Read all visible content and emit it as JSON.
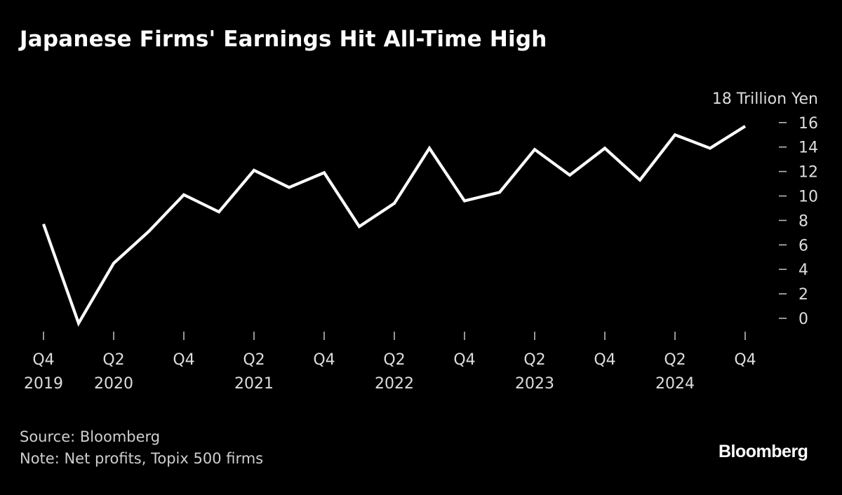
{
  "chart_data": {
    "type": "line",
    "title": "Japanese Firms' Earnings Hit All-Time High",
    "unit_label": "18 Trillion Yen",
    "xlabel": "",
    "ylabel": "",
    "ylim": [
      0,
      18
    ],
    "yticks": [
      0,
      2,
      4,
      6,
      8,
      10,
      12,
      14,
      16
    ],
    "x": [
      "Q4 2019",
      "Q1 2020",
      "Q2 2020",
      "Q3 2020",
      "Q4 2020",
      "Q1 2021",
      "Q2 2021",
      "Q3 2021",
      "Q4 2021",
      "Q1 2022",
      "Q2 2022",
      "Q3 2022",
      "Q4 2022",
      "Q1 2023",
      "Q2 2023",
      "Q3 2023",
      "Q4 2023",
      "Q1 2024",
      "Q2 2024",
      "Q3 2024",
      "Q4 2024"
    ],
    "values": [
      7.7,
      -0.4,
      4.5,
      7.1,
      10.1,
      8.7,
      12.1,
      10.7,
      11.9,
      7.5,
      9.4,
      13.9,
      9.6,
      10.3,
      13.8,
      11.7,
      13.9,
      11.3,
      15.0,
      13.9,
      15.7
    ],
    "xtick_labels": [
      {
        "index": 0,
        "quarter": "Q4",
        "year": "2019"
      },
      {
        "index": 2,
        "quarter": "Q2",
        "year": "2020"
      },
      {
        "index": 4,
        "quarter": "Q4",
        "year": ""
      },
      {
        "index": 6,
        "quarter": "Q2",
        "year": "2021"
      },
      {
        "index": 8,
        "quarter": "Q4",
        "year": ""
      },
      {
        "index": 10,
        "quarter": "Q2",
        "year": "2022"
      },
      {
        "index": 12,
        "quarter": "Q4",
        "year": ""
      },
      {
        "index": 14,
        "quarter": "Q2",
        "year": "2023"
      },
      {
        "index": 16,
        "quarter": "Q4",
        "year": ""
      },
      {
        "index": 18,
        "quarter": "Q2",
        "year": "2024"
      },
      {
        "index": 20,
        "quarter": "Q4",
        "year": ""
      }
    ],
    "line_color": "#ffffff",
    "background": "#000000",
    "axis_color": "#bbbbbb",
    "text_color": "#dddddd",
    "grid": false,
    "y_axis_side": "right"
  },
  "footer": {
    "source": "Source: Bloomberg",
    "note": "Note: Net profits, Topix 500 firms"
  },
  "brand": {
    "logo_text": "Bloomberg"
  }
}
